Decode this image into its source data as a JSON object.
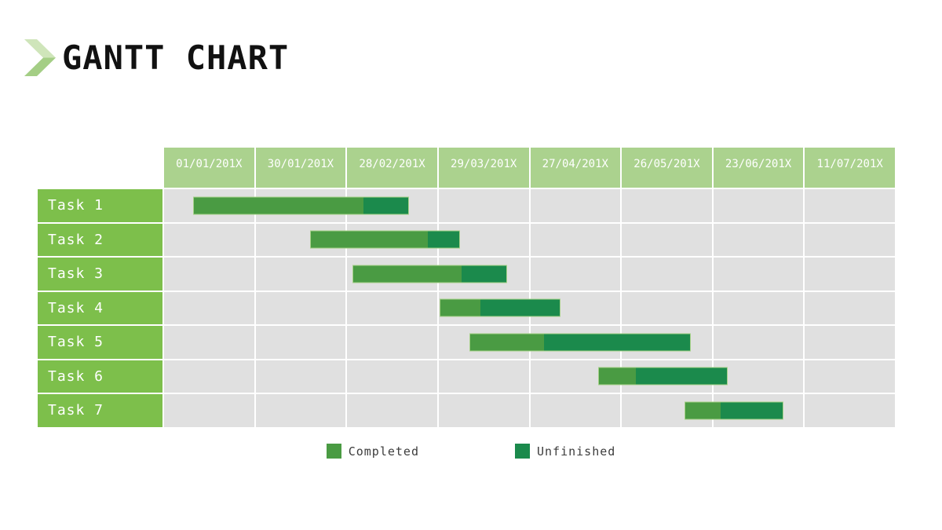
{
  "header": {
    "title": "GANTT CHART"
  },
  "colors": {
    "header_bg": "#abd28e",
    "label_bg": "#7dbf4b",
    "completed": "#4a9b43",
    "unfinished": "#1b8a4c",
    "grid_bg": "#e0e0e0",
    "chevron_light": "#cfe5ba",
    "chevron_dark": "#a4ce85"
  },
  "chart_data": {
    "type": "gantt",
    "title": "GANTT CHART",
    "columns": [
      "01/01/201X",
      "30/01/201X",
      "28/02/201X",
      "29/03/201X",
      "27/04/201X",
      "26/05/201X",
      "23/06/201X",
      "11/07/201X"
    ],
    "timeline_units": "percent_of_timeline",
    "tasks": [
      {
        "label": "Task 1",
        "start_pct": 4.0,
        "split_pct": 27.4,
        "end_pct": 33.5
      },
      {
        "label": "Task 2",
        "start_pct": 20.0,
        "split_pct": 36.2,
        "end_pct": 40.5
      },
      {
        "label": "Task 3",
        "start_pct": 25.8,
        "split_pct": 40.8,
        "end_pct": 46.9
      },
      {
        "label": "Task 4",
        "start_pct": 37.7,
        "split_pct": 43.2,
        "end_pct": 54.2
      },
      {
        "label": "Task 5",
        "start_pct": 41.8,
        "split_pct": 51.9,
        "end_pct": 72.1
      },
      {
        "label": "Task 6",
        "start_pct": 59.4,
        "split_pct": 64.5,
        "end_pct": 77.1
      },
      {
        "label": "Task 7",
        "start_pct": 71.2,
        "split_pct": 76.1,
        "end_pct": 84.8
      }
    ],
    "legend": [
      {
        "label": "Completed",
        "color_key": "completed"
      },
      {
        "label": "Unfinished",
        "color_key": "unfinished"
      }
    ],
    "layout": {
      "grid": "on",
      "legend_position": "bottom-center"
    }
  }
}
